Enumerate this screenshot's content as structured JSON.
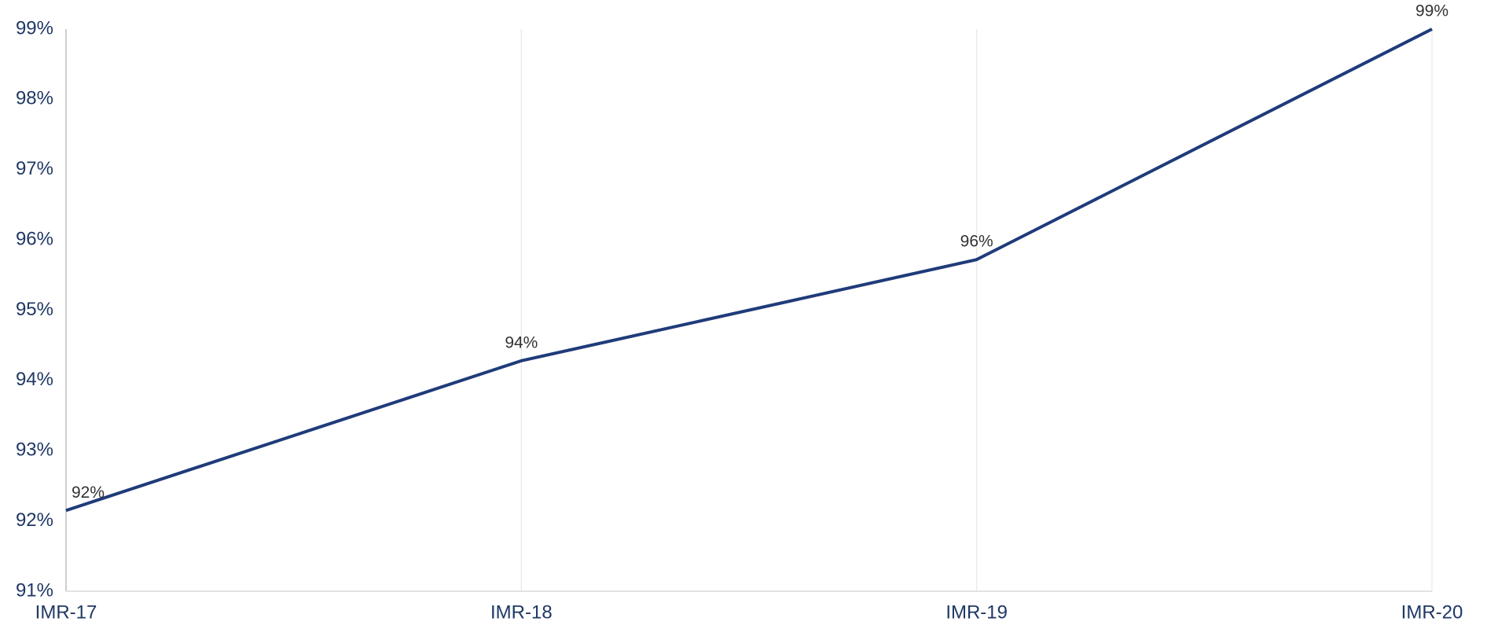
{
  "chart_data": {
    "type": "line",
    "categories": [
      "IMR-17",
      "IMR-18",
      "IMR-19",
      "IMR-20"
    ],
    "series": [
      {
        "color": "#1f3b7a",
        "values": [
          92.15,
          94.28,
          95.72,
          99.0
        ],
        "value_labels": [
          "92%",
          "94%",
          "96%",
          "99%"
        ]
      }
    ],
    "ylim": [
      91,
      99
    ],
    "yticks": [
      {
        "value": 91,
        "label": "91%"
      },
      {
        "value": 92,
        "label": "92%"
      },
      {
        "value": 93,
        "label": "93%"
      },
      {
        "value": 94,
        "label": "94%"
      },
      {
        "value": 95,
        "label": "95%"
      },
      {
        "value": 96,
        "label": "96%"
      },
      {
        "value": 97,
        "label": "97%"
      },
      {
        "value": 98,
        "label": "98%"
      },
      {
        "value": 99,
        "label": "99%"
      }
    ],
    "grid": "x"
  }
}
